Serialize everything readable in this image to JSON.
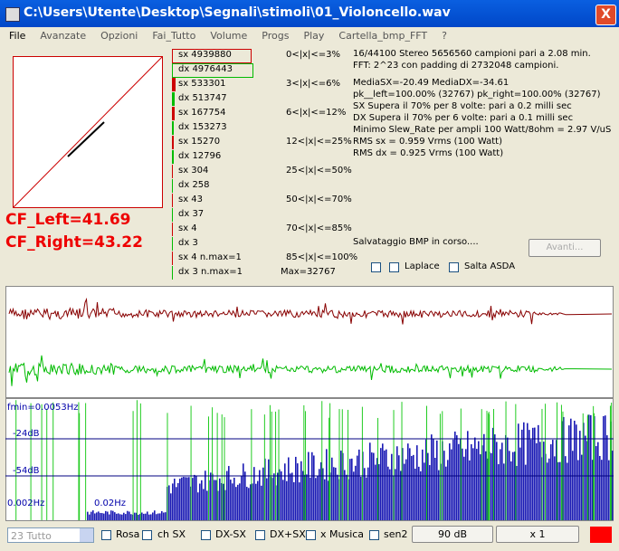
{
  "window": {
    "title": "C:\\Users\\Utente\\Desktop\\Segnali\\stimoli\\01_Violoncello.wav",
    "close": "X"
  },
  "menu": [
    "File",
    "Avanzate",
    "Opzioni",
    "Fai_Tutto",
    "Volume",
    "Progs",
    "Play",
    "Cartella_bmp_FFT",
    "?"
  ],
  "crest": {
    "left": "CF_Left=41.69",
    "right": "CF_Right=43.22"
  },
  "histogram": {
    "rows": [
      "sx 4939880",
      "dx 4976443",
      "sx 533301",
      "dx 513747",
      "sx 167754",
      "dx 153273",
      "sx 15270",
      "dx 12796",
      "sx 304",
      "dx 258",
      "sx 43",
      "dx 37",
      "sx 4",
      "dx 3",
      "sx 4 n.max=1",
      "dx 3 n.max=1"
    ],
    "ranges": [
      "0<|x|<=3%",
      "3<|x|<=6%",
      "6<|x|<=12%",
      "12<|x|<=25%",
      "25<|x|<=50%",
      "50<|x|<=70%",
      "70<|x|<=85%",
      "85<|x|<=100%"
    ],
    "max": "Max=32767"
  },
  "info": [
    "16/44100 Stereo 5656560 campioni pari a 2.08 min.",
    "FFT: 2^23 con padding di 2732048 campioni.",
    "MediaSX=-20.49  MediaDX=-34.61",
    "pk__left=100.00% (32767)  pk_right=100.00% (32767)",
    "SX Supera il 70% per 8 volte: pari a 0.2 milli sec",
    "DX Supera il 70% per 6 volte: pari a 0.1 milli sec",
    "Minimo Slew_Rate per ampli 100 Watt/8ohm = 2.97 V/uS",
    "RMS sx = 0.959 Vrms (100 Watt)",
    "RMS dx = 0.925 Vrms (100 Watt)"
  ],
  "status": "Salvataggio BMP in corso....",
  "avanti": "Avanti...",
  "options": {
    "laplace": "Laplace",
    "salta": "Salta ASDA"
  },
  "spectrum": {
    "fmin": "fmin=0.0053Hz",
    "db1": "-24dB",
    "db2": "-54dB",
    "f1": "0.002Hz",
    "f2": "0.02Hz"
  },
  "toolbar": {
    "combo": "23 Tutto",
    "rosa": "Rosa",
    "chsx": "ch SX",
    "dxsx": "DX-SX",
    "dxpsx": "DX+SX",
    "musica": "x Musica",
    "sen2": "sen2",
    "db": "90 dB",
    "zoom": "x 1"
  }
}
